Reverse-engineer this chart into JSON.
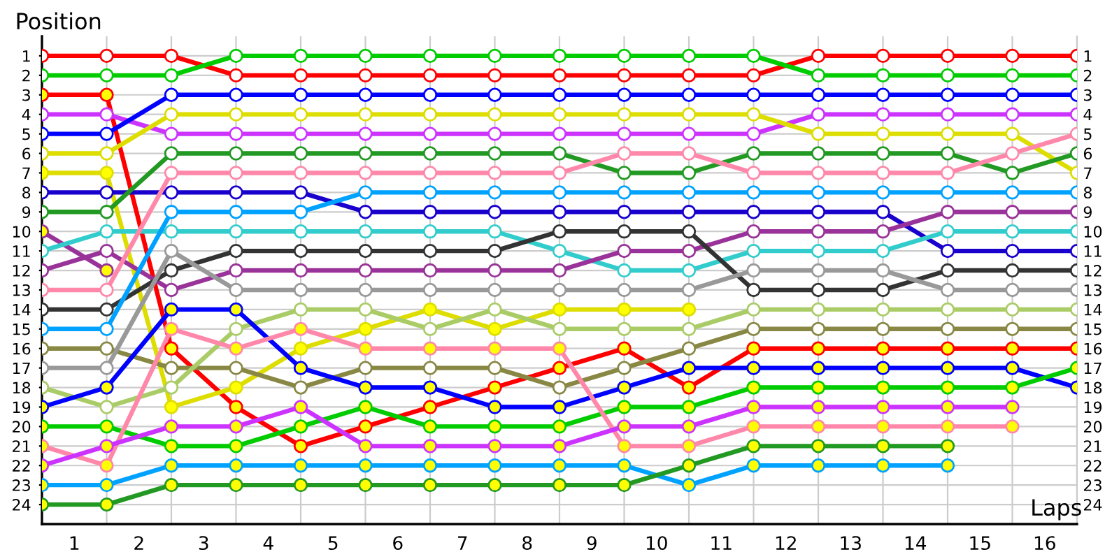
{
  "chart_data": {
    "type": "line",
    "xlabel": "Laps",
    "ylabel": "Position",
    "x": [
      0,
      1,
      2,
      3,
      4,
      5,
      6,
      7,
      8,
      9,
      10,
      11,
      12,
      13,
      14,
      15,
      16
    ],
    "xlim": [
      0,
      16
    ],
    "xticks": [
      {
        "value": 0.5,
        "label": "1"
      },
      {
        "value": 1.5,
        "label": "2"
      },
      {
        "value": 2.5,
        "label": "3"
      },
      {
        "value": 3.5,
        "label": "4"
      },
      {
        "value": 4.5,
        "label": "5"
      },
      {
        "value": 5.5,
        "label": "6"
      },
      {
        "value": 6.5,
        "label": "7"
      },
      {
        "value": 7.5,
        "label": "8"
      },
      {
        "value": 8.5,
        "label": "9"
      },
      {
        "value": 9.5,
        "label": "10"
      },
      {
        "value": 10.5,
        "label": "11"
      },
      {
        "value": 11.5,
        "label": "12"
      },
      {
        "value": 12.5,
        "label": "13"
      },
      {
        "value": 13.5,
        "label": "14"
      },
      {
        "value": 14.5,
        "label": "15"
      },
      {
        "value": 15.5,
        "label": "16"
      },
      {
        "value": 0,
        "label": null
      },
      {
        "value": 1,
        "label": null
      },
      {
        "value": 2,
        "label": null
      },
      {
        "value": 3,
        "label": null
      },
      {
        "value": 4,
        "label": null
      },
      {
        "value": 5,
        "label": null
      },
      {
        "value": 6,
        "label": null
      },
      {
        "value": 7,
        "label": null
      },
      {
        "value": 8,
        "label": null
      },
      {
        "value": 9,
        "label": null
      },
      {
        "value": 10,
        "label": null
      },
      {
        "value": 11,
        "label": null
      },
      {
        "value": 12,
        "label": null
      },
      {
        "value": 13,
        "label": null
      },
      {
        "value": 14,
        "label": null
      },
      {
        "value": 15,
        "label": null
      },
      {
        "value": 16,
        "label": null
      }
    ],
    "ylim": [
      25,
      0
    ],
    "yticks": [
      1,
      2,
      3,
      4,
      5,
      6,
      7,
      8,
      9,
      10,
      11,
      12,
      13,
      14,
      15,
      16,
      17,
      18,
      19,
      20,
      21,
      22,
      23,
      24
    ],
    "y2lim": [
      25,
      0
    ],
    "y2ticks": [
      1,
      2,
      3,
      4,
      5,
      6,
      7,
      8,
      9,
      10,
      11,
      12,
      13,
      14,
      15,
      16,
      17,
      18,
      19,
      20,
      21,
      22,
      23,
      24
    ],
    "grid": true,
    "marker": "circle",
    "line_style": "solid",
    "series": [
      {
        "color": "#ff0000",
        "values": [
          1,
          1,
          1,
          2,
          2,
          2,
          2,
          2,
          2,
          2,
          2,
          2,
          1,
          1,
          1,
          1,
          1
        ],
        "colors": [
          "#ffffff",
          "#ffffff",
          "#ffffff",
          "#ffffff",
          "#ffffff",
          "#ffffff",
          "#ffffff",
          "#ffffff",
          "#ffffff",
          "#ffffff",
          "#ffffff",
          "#ffffff",
          "#ffffff",
          "#ffffff",
          "#ffffff",
          "#ffffff",
          "#ffffff"
        ]
      },
      {
        "color": "#00cc00",
        "values": [
          2,
          2,
          2,
          1,
          1,
          1,
          1,
          1,
          1,
          1,
          1,
          1,
          2,
          2,
          2,
          2,
          2
        ],
        "colors": [
          "#ffffff",
          "#ffffff",
          "#ffffff",
          "#ffffff",
          "#ffffff",
          "#ffffff",
          "#ffffff",
          "#ffffff",
          "#ffffff",
          "#ffffff",
          "#ffffff",
          "#ffffff",
          "#ffffff",
          "#ffffff",
          "#ffffff",
          "#ffffff",
          "#ffffff"
        ]
      },
      {
        "color": "#ff0000",
        "values": [
          3,
          3,
          16,
          19,
          21,
          20,
          19,
          18,
          17,
          16,
          18,
          16,
          16,
          16,
          16,
          16,
          16
        ],
        "colors": [
          "#ffff00",
          "#ffff00",
          "#ffff00",
          "#ffff00",
          "#ffff00",
          "#ffff00",
          "#ffff00",
          "#ffff00",
          "#ffff00",
          "#ffff00",
          "#ffff00",
          "#ffff00",
          "#ffff00",
          "#ffff00",
          "#ffff00",
          "#ffff00",
          "#ffff00"
        ]
      },
      {
        "color": "#cc33ff",
        "values": [
          4,
          4,
          5,
          5,
          5,
          5,
          5,
          5,
          5,
          5,
          5,
          5,
          4,
          4,
          4,
          4,
          4
        ],
        "colors": [
          "#ffffff",
          "#ffffff",
          "#ffffff",
          "#ffffff",
          "#ffffff",
          "#ffffff",
          "#ffffff",
          "#ffffff",
          "#ffffff",
          "#ffffff",
          "#ffffff",
          "#ffffff",
          "#ffffff",
          "#ffffff",
          "#ffffff",
          "#ffffff",
          "#ffffff"
        ]
      },
      {
        "color": "#0000ff",
        "values": [
          5,
          5,
          3,
          3,
          3,
          3,
          3,
          3,
          3,
          3,
          3,
          3,
          3,
          3,
          3,
          3,
          3
        ],
        "colors": [
          "#ffffff",
          "#ffffff",
          "#ffffff",
          "#ffffff",
          "#ffffff",
          "#ffffff",
          "#ffffff",
          "#ffffff",
          "#ffffff",
          "#ffffff",
          "#ffffff",
          "#ffffff",
          "#ffffff",
          "#ffffff",
          "#ffffff",
          "#ffffff",
          "#ffffff"
        ]
      },
      {
        "color": "#dddd00",
        "values": [
          6,
          6,
          4,
          4,
          4,
          4,
          4,
          4,
          4,
          4,
          4,
          4,
          5,
          5,
          5,
          5,
          7
        ],
        "colors": [
          "#ffffff",
          "#ffffff",
          "#ffffff",
          "#ffffff",
          "#ffffff",
          "#ffffff",
          "#ffffff",
          "#ffffff",
          "#ffffff",
          "#ffffff",
          "#ffffff",
          "#ffffff",
          "#ffffff",
          "#ffffff",
          "#ffffff",
          "#ffffff",
          "#ffffff"
        ]
      },
      {
        "color": "#dddd00",
        "values": [
          7,
          7,
          19,
          18,
          16,
          15,
          14,
          15,
          14,
          14,
          14,
          null,
          null,
          null,
          null,
          null,
          null
        ],
        "colors": [
          "#ffff00",
          "#ffff00",
          "#ffff00",
          "#ffff00",
          "#ffff00",
          "#ffff00",
          "#ffff00",
          "#ffff00",
          "#ffff00",
          "#ffff00",
          "#ffff00",
          "#ffff00",
          "#ffff00",
          "#ffff00",
          "#ffff00",
          "#ffff00",
          "#ffff00"
        ]
      },
      {
        "color": "#1a00cc",
        "values": [
          8,
          8,
          8,
          8,
          8,
          9,
          9,
          9,
          9,
          9,
          9,
          9,
          9,
          9,
          11,
          11,
          11
        ],
        "colors": [
          "#ffffff",
          "#ffffff",
          "#ffffff",
          "#ffffff",
          "#ffffff",
          "#ffffff",
          "#ffffff",
          "#ffffff",
          "#ffffff",
          "#ffffff",
          "#ffffff",
          "#ffffff",
          "#ffffff",
          "#ffffff",
          "#ffffff",
          "#ffffff",
          "#ffffff"
        ]
      },
      {
        "color": "#229922",
        "values": [
          9,
          9,
          6,
          6,
          6,
          6,
          6,
          6,
          6,
          7,
          7,
          6,
          6,
          6,
          6,
          7,
          6
        ],
        "colors": [
          "#ffffff",
          "#ffffff",
          "#ffffff",
          "#ffffff",
          "#ffffff",
          "#ffffff",
          "#ffffff",
          "#ffffff",
          "#ffffff",
          "#ffffff",
          "#ffffff",
          "#ffffff",
          "#ffffff",
          "#ffffff",
          "#ffffff",
          "#ffffff",
          "#ffffff"
        ]
      },
      {
        "color": "#993399",
        "values": [
          10,
          12,
          null,
          null,
          null,
          null,
          null,
          null,
          null,
          null,
          null,
          null,
          null,
          null,
          null,
          null,
          null
        ],
        "colors": [
          "#ffff00",
          "#ffff00",
          "#ffff00",
          "#ffff00",
          "#ffff00",
          "#ffff00",
          "#ffff00",
          "#ffff00",
          "#ffff00",
          "#ffff00",
          "#ffff00",
          "#ffff00",
          "#ffff00",
          "#ffff00",
          "#ffff00",
          "#ffff00",
          "#ffff00"
        ]
      },
      {
        "color": "#33cccc",
        "values": [
          11,
          10,
          10,
          10,
          10,
          10,
          10,
          10,
          11,
          12,
          12,
          11,
          11,
          11,
          10,
          10,
          10
        ],
        "colors": [
          "#ffffff",
          "#ffffff",
          "#ffffff",
          "#ffffff",
          "#ffffff",
          "#ffffff",
          "#ffffff",
          "#ffffff",
          "#ffffff",
          "#ffffff",
          "#ffffff",
          "#ffffff",
          "#ffffff",
          "#ffffff",
          "#ffffff",
          "#ffffff",
          "#ffffff"
        ]
      },
      {
        "color": "#993399",
        "values": [
          12,
          11,
          13,
          12,
          12,
          12,
          12,
          12,
          12,
          11,
          11,
          10,
          10,
          10,
          9,
          9,
          9
        ],
        "colors": [
          "#ffffff",
          "#ffffff",
          "#ffffff",
          "#ffffff",
          "#ffffff",
          "#ffffff",
          "#ffffff",
          "#ffffff",
          "#ffffff",
          "#ffffff",
          "#ffffff",
          "#ffffff",
          "#ffffff",
          "#ffffff",
          "#ffffff",
          "#ffffff",
          "#ffffff"
        ]
      },
      {
        "color": "#ff88aa",
        "values": [
          13,
          13,
          7,
          7,
          7,
          7,
          7,
          7,
          7,
          6,
          6,
          7,
          7,
          7,
          7,
          6,
          5
        ],
        "colors": [
          "#ffffff",
          "#ffffff",
          "#ffffff",
          "#ffffff",
          "#ffffff",
          "#ffffff",
          "#ffffff",
          "#ffffff",
          "#ffffff",
          "#ffffff",
          "#ffffff",
          "#ffffff",
          "#ffffff",
          "#ffffff",
          "#ffffff",
          "#ffffff",
          "#ffffff"
        ]
      },
      {
        "color": "#333333",
        "values": [
          14,
          14,
          12,
          11,
          11,
          11,
          11,
          11,
          10,
          10,
          10,
          13,
          13,
          13,
          12,
          12,
          12
        ],
        "colors": [
          "#ffffff",
          "#ffffff",
          "#ffffff",
          "#ffffff",
          "#ffffff",
          "#ffffff",
          "#ffffff",
          "#ffffff",
          "#ffffff",
          "#ffffff",
          "#ffffff",
          "#ffffff",
          "#ffffff",
          "#ffffff",
          "#ffffff",
          "#ffffff",
          "#ffffff"
        ]
      },
      {
        "color": "#00a2ff",
        "values": [
          15,
          15,
          9,
          9,
          9,
          8,
          8,
          8,
          8,
          8,
          8,
          8,
          8,
          8,
          8,
          8,
          8
        ],
        "colors": [
          "#ffffff",
          "#ffffff",
          "#ffffff",
          "#ffffff",
          "#ffffff",
          "#ffffff",
          "#ffffff",
          "#ffffff",
          "#ffffff",
          "#ffffff",
          "#ffffff",
          "#ffffff",
          "#ffffff",
          "#ffffff",
          "#ffffff",
          "#ffffff",
          "#ffffff"
        ]
      },
      {
        "color": "#888844",
        "values": [
          16,
          16,
          17,
          17,
          18,
          17,
          17,
          17,
          18,
          17,
          16,
          15,
          15,
          15,
          15,
          15,
          15
        ],
        "colors": [
          "#ffffff",
          "#ffffff",
          "#ffffff",
          "#ffffff",
          "#ffffff",
          "#ffffff",
          "#ffffff",
          "#ffffff",
          "#ffffff",
          "#ffffff",
          "#ffffff",
          "#ffffff",
          "#ffffff",
          "#ffffff",
          "#ffffff",
          "#ffffff",
          "#ffffff"
        ]
      },
      {
        "color": "#999999",
        "values": [
          17,
          17,
          11,
          13,
          13,
          13,
          13,
          13,
          13,
          13,
          13,
          12,
          12,
          12,
          13,
          13,
          13
        ],
        "colors": [
          "#ffffff",
          "#ffffff",
          "#ffffff",
          "#ffffff",
          "#ffffff",
          "#ffffff",
          "#ffffff",
          "#ffffff",
          "#ffffff",
          "#ffffff",
          "#ffffff",
          "#ffffff",
          "#ffffff",
          "#ffffff",
          "#ffffff",
          "#ffffff",
          "#ffffff"
        ]
      },
      {
        "color": "#aacc66",
        "values": [
          18,
          19,
          18,
          15,
          14,
          14,
          15,
          14,
          15,
          15,
          15,
          14,
          14,
          14,
          14,
          14,
          14
        ],
        "colors": [
          "#ffffff",
          "#ffffff",
          "#ffffff",
          "#ffffff",
          "#ffffff",
          "#ffffff",
          "#ffffff",
          "#ffffff",
          "#ffffff",
          "#ffffff",
          "#ffffff",
          "#ffffff",
          "#ffffff",
          "#ffffff",
          "#ffffff",
          "#ffffff",
          "#ffffff"
        ]
      },
      {
        "color": "#0000ff",
        "values": [
          19,
          18,
          14,
          14,
          17,
          18,
          18,
          19,
          19,
          18,
          17,
          17,
          17,
          17,
          17,
          17,
          18
        ],
        "colors": [
          "#ffff00",
          "#ffff00",
          "#ffff00",
          "#ffff00",
          "#ffff00",
          "#ffff00",
          "#ffff00",
          "#ffff00",
          "#ffff00",
          "#ffff00",
          "#ffff00",
          "#ffff00",
          "#ffff00",
          "#ffff00",
          "#ffff00",
          "#ffff00",
          "#ffff00"
        ]
      },
      {
        "color": "#00cc00",
        "values": [
          20,
          20,
          21,
          21,
          20,
          19,
          20,
          20,
          20,
          19,
          19,
          18,
          18,
          18,
          18,
          18,
          17
        ],
        "colors": [
          "#ffff00",
          "#ffff00",
          "#ffff00",
          "#ffff00",
          "#ffff00",
          "#ffff00",
          "#ffff00",
          "#ffff00",
          "#ffff00",
          "#ffff00",
          "#ffff00",
          "#ffff00",
          "#ffff00",
          "#ffff00",
          "#ffff00",
          "#ffff00",
          "#ffff00"
        ]
      },
      {
        "color": "#ff88aa",
        "values": [
          21,
          22,
          15,
          16,
          15,
          16,
          16,
          16,
          16,
          21,
          21,
          20,
          20,
          20,
          20,
          20,
          null
        ],
        "colors": [
          "#ffff00",
          "#ffff00",
          "#ffff00",
          "#ffff00",
          "#ffff00",
          "#ffff00",
          "#ffff00",
          "#ffff00",
          "#ffff00",
          "#ffff00",
          "#ffff00",
          "#ffff00",
          "#ffff00",
          "#ffff00",
          "#ffff00",
          "#ffff00",
          "#ffff00"
        ]
      },
      {
        "color": "#cc33ff",
        "values": [
          22,
          21,
          20,
          20,
          19,
          21,
          21,
          21,
          21,
          20,
          20,
          19,
          19,
          19,
          19,
          19,
          null
        ],
        "colors": [
          "#ffff00",
          "#ffff00",
          "#ffff00",
          "#ffff00",
          "#ffff00",
          "#ffff00",
          "#ffff00",
          "#ffff00",
          "#ffff00",
          "#ffff00",
          "#ffff00",
          "#ffff00",
          "#ffff00",
          "#ffff00",
          "#ffff00",
          "#ffff00",
          "#ffff00"
        ]
      },
      {
        "color": "#00a2ff",
        "values": [
          23,
          23,
          22,
          22,
          22,
          22,
          22,
          22,
          22,
          22,
          23,
          22,
          22,
          22,
          22,
          null,
          null
        ],
        "colors": [
          "#ffff00",
          "#ffff00",
          "#ffff00",
          "#ffff00",
          "#ffff00",
          "#ffff00",
          "#ffff00",
          "#ffff00",
          "#ffff00",
          "#ffff00",
          "#ffff00",
          "#ffff00",
          "#ffff00",
          "#ffff00",
          "#ffff00",
          "#ffff00",
          "#ffff00"
        ]
      },
      {
        "color": "#229922",
        "values": [
          24,
          24,
          23,
          23,
          23,
          23,
          23,
          23,
          23,
          23,
          22,
          21,
          21,
          21,
          21,
          null,
          null
        ],
        "colors": [
          "#ffff00",
          "#ffff00",
          "#ffff00",
          "#ffff00",
          "#ffff00",
          "#ffff00",
          "#ffff00",
          "#ffff00",
          "#ffff00",
          "#ffff00",
          "#ffff00",
          "#ffff00",
          "#ffff00",
          "#ffff00",
          "#ffff00",
          "#ffff00",
          "#ffff00"
        ]
      }
    ]
  }
}
